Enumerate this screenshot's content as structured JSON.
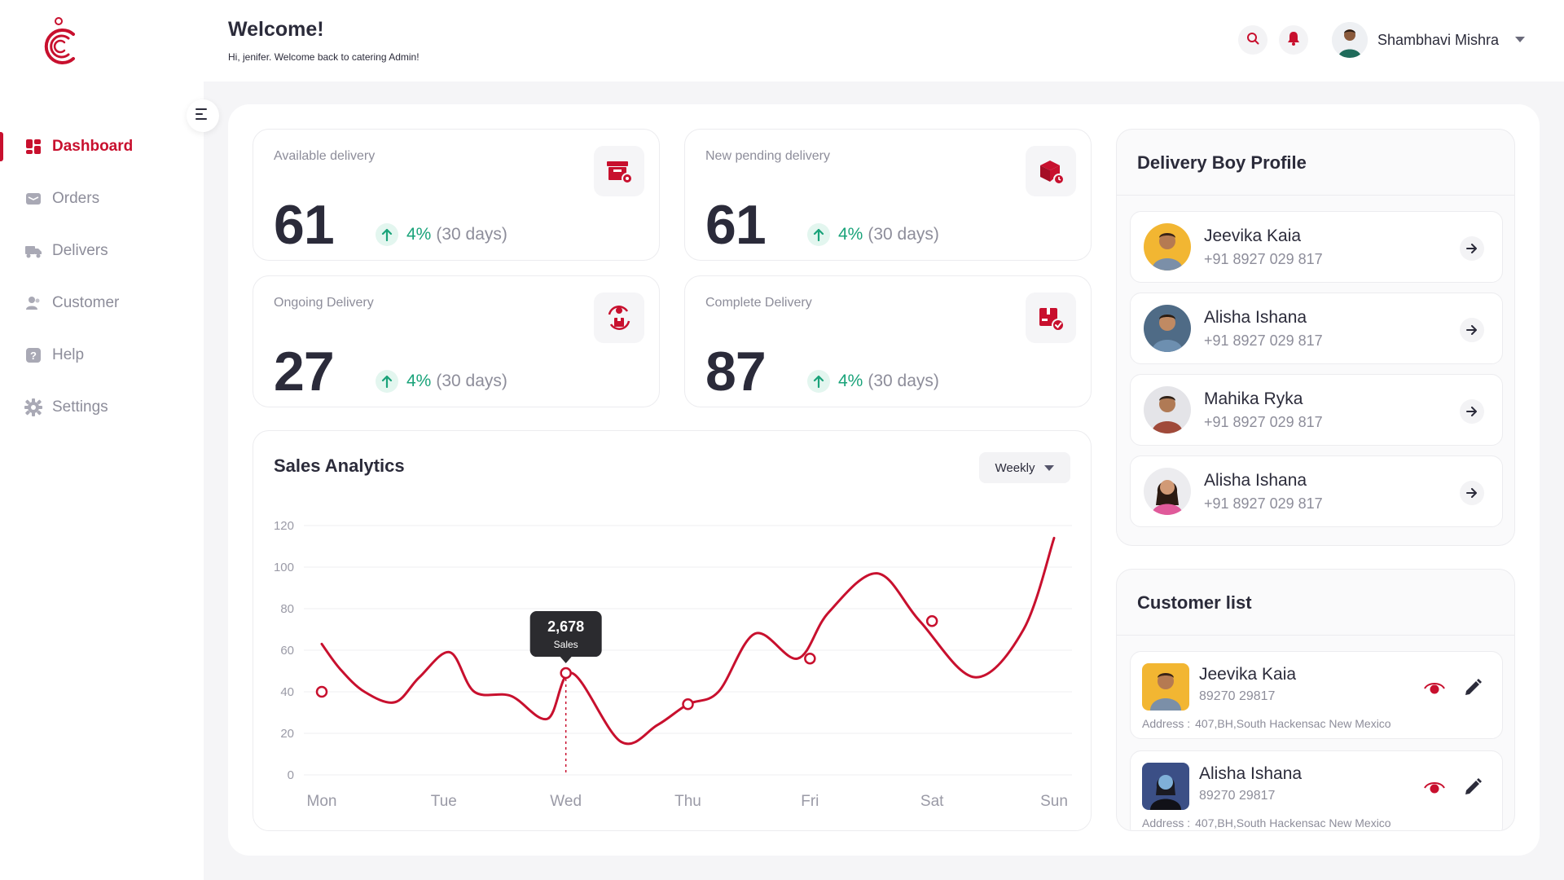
{
  "brand": {
    "accent": "#c8102e",
    "positive": "#1aa37a",
    "muted": "#8d8d9a"
  },
  "sidebar": {
    "logo_icon": "catering-c-logo",
    "items": [
      {
        "label": "Dashboard",
        "icon": "dashboard-icon",
        "active": true
      },
      {
        "label": "Orders",
        "icon": "orders-icon",
        "active": false
      },
      {
        "label": "Delivers",
        "icon": "delivery-truck-icon",
        "active": false
      },
      {
        "label": "Customer",
        "icon": "customer-icon",
        "active": false
      },
      {
        "label": "Help",
        "icon": "help-icon",
        "active": false
      },
      {
        "label": "Settings",
        "icon": "settings-icon",
        "active": false
      }
    ]
  },
  "header": {
    "title": "Welcome!",
    "subtitle": "Hi, jenifer. Welcome back  to catering Admin!",
    "user_name": "Shambhavi Mishra"
  },
  "stats": [
    {
      "title": "Available delivery",
      "value": "61",
      "trend_pct": "4%",
      "trend_days": "(30 days)",
      "icon": "available-delivery-icon"
    },
    {
      "title": "New pending delivery",
      "value": "61",
      "trend_pct": "4%",
      "trend_days": "(30 days)",
      "icon": "pending-box-icon"
    },
    {
      "title": "Ongoing Delivery",
      "value": "27",
      "trend_pct": "4%",
      "trend_days": "(30 days)",
      "icon": "ongoing-delivery-icon"
    },
    {
      "title": "Complete Delivery",
      "value": "87",
      "trend_pct": "4%",
      "trend_days": "(30 days)",
      "icon": "complete-delivery-icon"
    }
  ],
  "sales": {
    "title": "Sales Analytics",
    "period": "Weekly",
    "tooltip_value": "2,678",
    "tooltip_label": "Sales"
  },
  "chart_data": {
    "type": "line",
    "title": "Sales Analytics",
    "xlabel": "",
    "ylabel": "",
    "ylim": [
      0,
      120
    ],
    "yticks": [
      0,
      20,
      40,
      60,
      80,
      100,
      120
    ],
    "categories": [
      "Mon",
      "Tue",
      "Wed",
      "Thu",
      "Fri",
      "Sat",
      "Sun"
    ],
    "marker_points": [
      {
        "x": "Mon",
        "y": 40
      },
      {
        "x": "Wed",
        "y": 49
      },
      {
        "x": "Thu",
        "y": 34
      },
      {
        "x": "Fri",
        "y": 56
      },
      {
        "x": "Sat",
        "y": 74
      }
    ],
    "series": [
      {
        "color": "#c8102e",
        "points": [
          [
            0.0,
            63
          ],
          [
            0.15,
            51
          ],
          [
            0.35,
            40
          ],
          [
            0.6,
            35
          ],
          [
            0.8,
            47
          ],
          [
            1.05,
            59
          ],
          [
            1.25,
            40
          ],
          [
            1.55,
            38
          ],
          [
            1.85,
            27
          ],
          [
            2.05,
            49
          ],
          [
            2.45,
            16
          ],
          [
            2.75,
            24
          ],
          [
            3.0,
            34
          ],
          [
            3.25,
            40
          ],
          [
            3.55,
            68
          ],
          [
            3.9,
            56
          ],
          [
            4.15,
            78
          ],
          [
            4.55,
            97
          ],
          [
            4.9,
            74
          ],
          [
            5.35,
            47
          ],
          [
            5.75,
            70
          ],
          [
            6.0,
            114
          ]
        ]
      }
    ],
    "highlight": {
      "x": "Wed",
      "label": "2,678 Sales"
    },
    "grid": true,
    "legend": "none"
  },
  "delivery_profile": {
    "title": "Delivery Boy Profile",
    "people": [
      {
        "name": "Jeevika Kaia",
        "phone": "+91 8927 029 817",
        "avatar_bg": "#f2b632"
      },
      {
        "name": "Alisha Ishana",
        "phone": "+91 8927 029 817",
        "avatar_bg": "#4f6b86"
      },
      {
        "name": "Mahika Ryka",
        "phone": "+91 8927 029 817",
        "avatar_bg": "#e4e4e8"
      },
      {
        "name": "Alisha Ishana",
        "phone": "+91 8927 029 817",
        "avatar_bg": "#ececef"
      }
    ]
  },
  "customers": {
    "title": "Customer list",
    "address_label": "Address :",
    "list": [
      {
        "name": "Jeevika Kaia",
        "phone": "89270 29817",
        "address": "407,BH,South Hackensac New Mexico",
        "avatar_bg": "#f2b632"
      },
      {
        "name": "Alisha Ishana",
        "phone": "89270 29817",
        "address": "407,BH,South Hackensac New Mexico",
        "avatar_bg": "#3b4f86"
      }
    ]
  }
}
